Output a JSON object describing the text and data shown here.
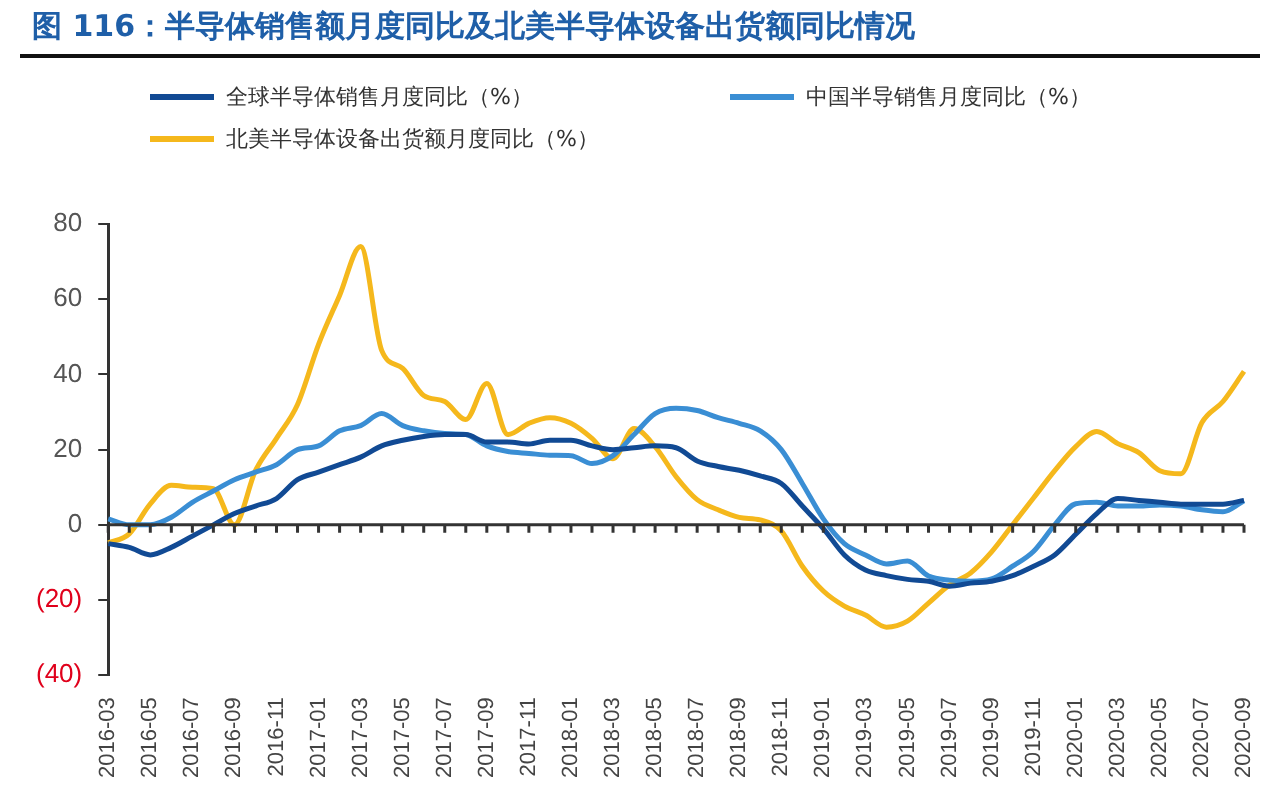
{
  "chart_data": {
    "type": "line",
    "title": "图 116：半导体销售额月度同比及北美半导体设备出货额同比情况",
    "categories": [
      "2016-03",
      null,
      "2016-05",
      null,
      "2016-07",
      null,
      "2016-09",
      null,
      "2016-11",
      null,
      "2017-01",
      null,
      "2017-03",
      null,
      "2017-05",
      null,
      "2017-07",
      null,
      "2017-09",
      null,
      "2017-11",
      null,
      "2018-01",
      null,
      "2018-03",
      null,
      "2018-05",
      null,
      "2018-07",
      null,
      "2018-09",
      null,
      "2018-11",
      null,
      "2019-01",
      null,
      "2019-03",
      null,
      "2019-05",
      null,
      "2019-07",
      null,
      "2019-09",
      null,
      "2019-11",
      null,
      "2020-01",
      null,
      "2020-03",
      null,
      "2020-05",
      null,
      "2020-07",
      null,
      "2020-09"
    ],
    "series": [
      {
        "name": "全球半导体销售月度同比（%）",
        "color": "#114a94",
        "values": [
          -5,
          -6,
          -8,
          -6,
          -3,
          0,
          3,
          5,
          7,
          12,
          14,
          16,
          18,
          21,
          22.5,
          23.5,
          24,
          24,
          22,
          22,
          21.5,
          22.5,
          22.5,
          21,
          20,
          20.5,
          21,
          20.5,
          17,
          15.5,
          14.5,
          13,
          11,
          5,
          -1,
          -8,
          -12,
          -13.5,
          -14.5,
          -15,
          -16.3,
          -15.5,
          -15,
          -13.5,
          -11,
          -8,
          -2.5,
          3,
          7,
          6.5,
          6,
          5.5,
          5.5,
          5.5,
          6.5
        ]
      },
      {
        "name": "中国半导销售月度同比（%）",
        "color": "#3a8ed4",
        "values": [
          1.6,
          0,
          0,
          2,
          6,
          9,
          12,
          14,
          16,
          20,
          21,
          25,
          26.4,
          29.6,
          26.4,
          25,
          24.3,
          24,
          21,
          19.5,
          19,
          18.5,
          18.4,
          16.3,
          18.4,
          24,
          29.6,
          31,
          30.4,
          28.5,
          27,
          25,
          20,
          11,
          1.6,
          -5,
          -8,
          -10.4,
          -9.6,
          -13.6,
          -14.7,
          -15,
          -14.4,
          -11,
          -7,
          0,
          5.6,
          6,
          5,
          5,
          5.3,
          5,
          4,
          3.5,
          6.4
        ]
      },
      {
        "name": "北美半导体设备出货额月度同比（%）",
        "color": "#f5b81c",
        "values": [
          -4.8,
          -2.4,
          5.6,
          10.5,
          10,
          9.6,
          0,
          14.4,
          23,
          32,
          48,
          61,
          74,
          46.4,
          41.6,
          34.4,
          32.8,
          28,
          37.6,
          24,
          27,
          28.5,
          27,
          23,
          17.6,
          25.6,
          20.8,
          12.8,
          6.7,
          4,
          2,
          1.3,
          -1.6,
          -11,
          -17.6,
          -21.6,
          -24,
          -27.2,
          -25.6,
          -20.8,
          -16,
          -12.8,
          -7.2,
          0,
          7.2,
          14.4,
          20.8,
          24.8,
          21.6,
          19.2,
          14.4,
          13.6,
          27.2,
          32.8,
          40.8
        ]
      }
    ],
    "ylim": [
      -40,
      80
    ],
    "yticks": [
      {
        "value": -40,
        "label": "(40)"
      },
      {
        "value": -20,
        "label": "(20)"
      },
      0,
      20,
      40,
      60,
      80
    ],
    "ref_lines": [
      {
        "axis": "y",
        "value": 0,
        "color": "#333333"
      }
    ],
    "grid": false,
    "legend": "top",
    "marker": "none",
    "line_style": "solid"
  }
}
